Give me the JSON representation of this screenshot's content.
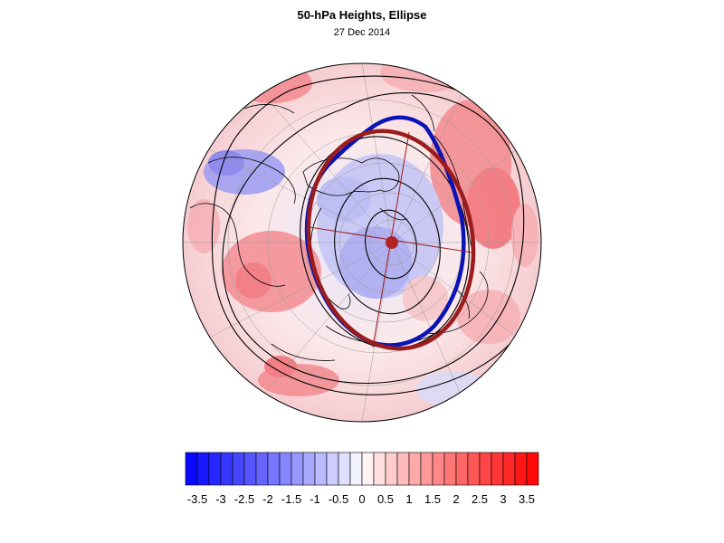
{
  "title": "50-hPa Heights, Ellipse",
  "subtitle": "27 Dec 2014",
  "colorbar": {
    "tick_labels": [
      "-3.5",
      "-3",
      "-2.5",
      "-2",
      "-1.5",
      "-1",
      "-0.5",
      "0",
      "0.5",
      "1",
      "1.5",
      "2",
      "2.5",
      "3",
      "3.5"
    ],
    "range": [
      -3.75,
      3.75
    ],
    "step": 0.25,
    "low_color": "#0000ff",
    "mid_color": "#ffffff",
    "high_color": "#ff0000"
  },
  "map": {
    "projection": "polar-stereographic north",
    "colors": {
      "ellipse_fit": "#9b1c1c",
      "vortex_edge": "#0a14b4",
      "contours": "#000000",
      "coastlines": "#000000"
    }
  }
}
